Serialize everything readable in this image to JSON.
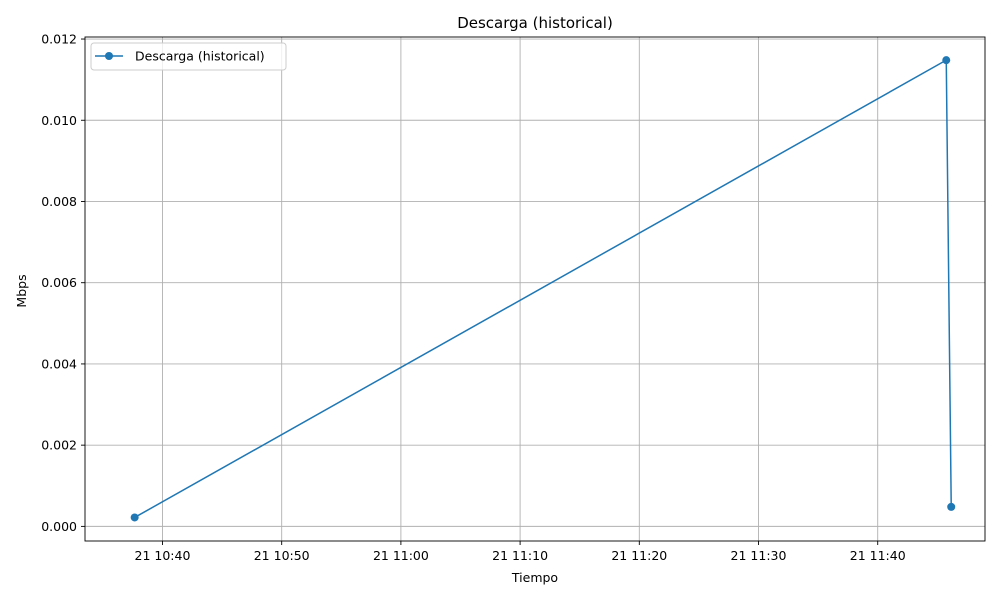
{
  "chart_data": {
    "type": "line",
    "title": "Descarga (historical)",
    "xlabel": "Tiempo",
    "ylabel": "Mbps",
    "x_tick_labels": [
      "21 10:40",
      "21 10:50",
      "21 11:00",
      "21 11:10",
      "21 11:20",
      "21 11:30",
      "21 11:40"
    ],
    "x_tick_values": [
      "10:40",
      "10:50",
      "11:00",
      "11:10",
      "11:20",
      "11:30",
      "11:40"
    ],
    "y_tick_labels": [
      "0.000",
      "0.002",
      "0.004",
      "0.006",
      "0.008",
      "0.010",
      "0.012"
    ],
    "y_tick_values": [
      0,
      0.002,
      0.004,
      0.006,
      0.008,
      0.01,
      0.012
    ],
    "xlim": [
      "10:33:30",
      "11:49:00"
    ],
    "ylim": [
      -0.00036,
      0.01205
    ],
    "grid": true,
    "legend_position": "top-left",
    "series": [
      {
        "name": "Descarga (historical)",
        "color": "#1f77b4",
        "marker": "circle",
        "points": [
          {
            "x": "10:37:40",
            "y": 0.00022
          },
          {
            "x": "11:45:45",
            "y": 0.01148
          },
          {
            "x": "11:46:10",
            "y": 0.00048
          }
        ]
      }
    ]
  }
}
